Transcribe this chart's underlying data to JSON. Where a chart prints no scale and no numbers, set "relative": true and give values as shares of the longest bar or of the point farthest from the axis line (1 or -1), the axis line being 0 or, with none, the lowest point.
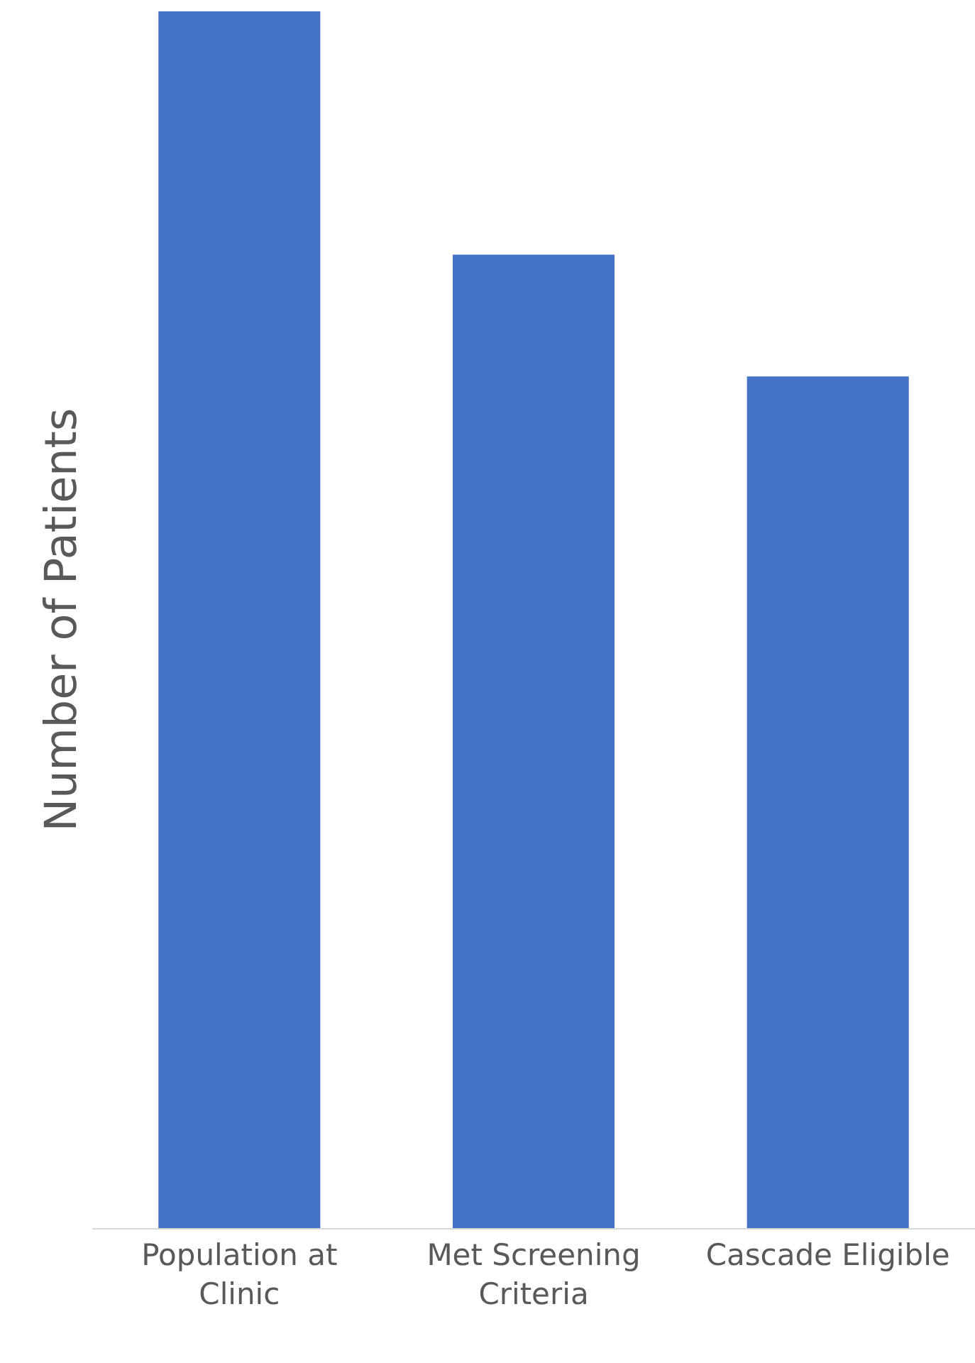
{
  "chart_data": {
    "type": "bar",
    "ylabel": "Number of Patients",
    "relative": true,
    "categories": [
      "Population at Clinic",
      "Met Screening Criteria",
      "Cascade Eligible"
    ],
    "values": [
      1,
      0.8,
      0.7
    ],
    "color": "#4472c4"
  }
}
